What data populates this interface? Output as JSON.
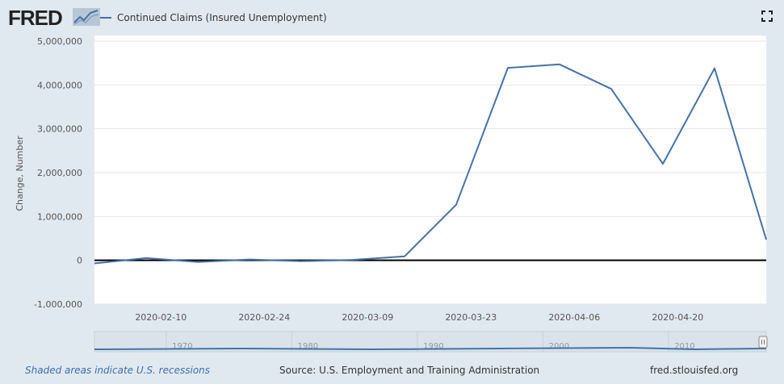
{
  "logo": {
    "text": "FRED"
  },
  "fullscreen": {
    "icon": "fullscreen-icon"
  },
  "footer": {
    "recessions_note": "Shaded areas indicate U.S. recessions",
    "source": "Source: U.S. Employment and Training Administration",
    "url": "fred.stlouisfed.org"
  },
  "chart_data": {
    "type": "line",
    "ylabel": "Change, Number",
    "xlabel": "",
    "ylim": [
      -1000000,
      5000000
    ],
    "yticks": [
      -1000000,
      0,
      1000000,
      2000000,
      3000000,
      4000000,
      5000000
    ],
    "ytick_labels": [
      "-1,000,000",
      "0",
      "1,000,000",
      "2,000,000",
      "3,000,000",
      "4,000,000",
      "5,000,000"
    ],
    "xlim": [
      "2020-02-01",
      "2020-05-02"
    ],
    "xticks": [
      "2020-02-10",
      "2020-02-24",
      "2020-03-09",
      "2020-03-23",
      "2020-04-06",
      "2020-04-20"
    ],
    "grid": true,
    "legend_position": "top-left",
    "zero_line": true,
    "series": [
      {
        "name": "Continued Claims (Insured Unemployment)",
        "color": "#4572a7",
        "x": [
          "2020-02-01",
          "2020-02-08",
          "2020-02-15",
          "2020-02-22",
          "2020-02-29",
          "2020-03-07",
          "2020-03-14",
          "2020-03-21",
          "2020-03-28",
          "2020-04-04",
          "2020-04-11",
          "2020-04-18",
          "2020-04-25",
          "2020-05-02"
        ],
        "y": [
          -70000,
          50000,
          -40000,
          20000,
          -20000,
          10000,
          90000,
          1270000,
          4390000,
          4470000,
          3910000,
          2200000,
          4380000,
          470000
        ]
      }
    ],
    "navigator": {
      "xticks": [
        "1970",
        "1980",
        "1990",
        "2000",
        "2010"
      ]
    }
  }
}
